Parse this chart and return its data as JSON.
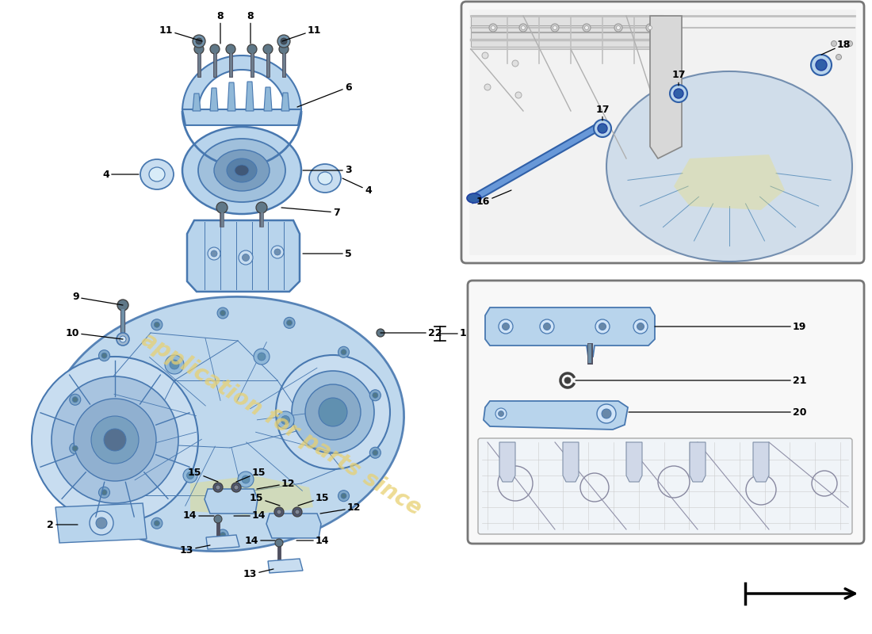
{
  "bg": "#ffffff",
  "watermark": "application for parts since",
  "wm_color": "#e8d070",
  "gc": "#b8d4ec",
  "ge": "#4878b0",
  "gc2": "#c8ddf0",
  "lc": "#000000",
  "label_fs": 9,
  "box_edge": "#777777",
  "dark_blue": "#3060a8",
  "mid_blue": "#7098c0",
  "light_blue": "#d0e4f4",
  "outline_gray": "#888888",
  "dark_gray": "#404040",
  "line_gray": "#999999"
}
